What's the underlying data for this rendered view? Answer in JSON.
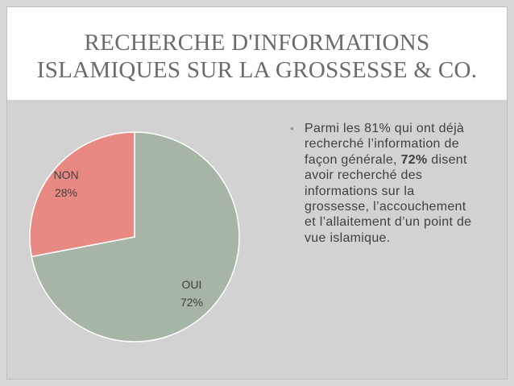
{
  "slide": {
    "title": "RECHERCHE D'INFORMATIONS\nISLAMIQUES SUR LA GROSSESSE & CO."
  },
  "bullet": {
    "marker": "•",
    "text_before": "Parmi les 81% qui ont déjà recherché l’information de façon générale, ",
    "emphasis": "72%",
    "text_after": " disent avoir recherché des informations sur la grossesse, l’accouchement et l’allaitement d’un point de vue islamique."
  },
  "colors": {
    "oui": "#a6b5a6",
    "non": "#e88a83"
  },
  "chart_data": {
    "type": "pie",
    "slices": [
      {
        "label": "OUI",
        "value": 72,
        "display": "72%",
        "color": "#a6b5a6"
      },
      {
        "label": "NON",
        "value": 28,
        "display": "28%",
        "color": "#e88a83"
      }
    ]
  }
}
